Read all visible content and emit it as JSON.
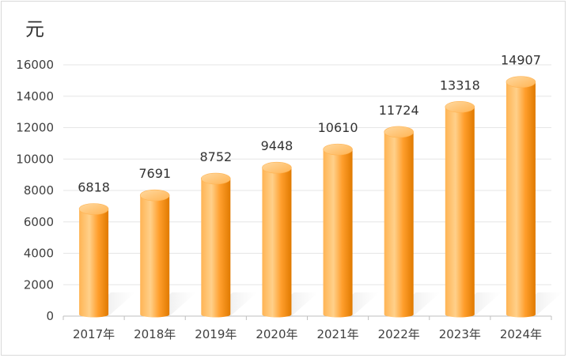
{
  "chart_data": {
    "type": "bar",
    "title": "",
    "ylabel": "元",
    "xlabel": "",
    "categories": [
      "2017年",
      "2018年",
      "2019年",
      "2020年",
      "2021年",
      "2022年",
      "2023年",
      "2024年"
    ],
    "values": [
      6818,
      7691,
      8752,
      9448,
      10610,
      11724,
      13318,
      14907
    ],
    "ylim": [
      0,
      16000
    ],
    "yticks": [
      "0",
      "2000",
      "4000",
      "6000",
      "8000",
      "10000",
      "12000",
      "14000",
      "16000"
    ],
    "data_labels": [
      "6818",
      "7691",
      "8752",
      "9448",
      "10610",
      "11724",
      "13318",
      "14907"
    ],
    "grid": true,
    "bar_style": "cylinder",
    "colors": {
      "bar_light": "#ffc77a",
      "bar_mid": "#ff9e2c",
      "bar_dark": "#e07a00",
      "grid": "#e6e6e6"
    }
  }
}
